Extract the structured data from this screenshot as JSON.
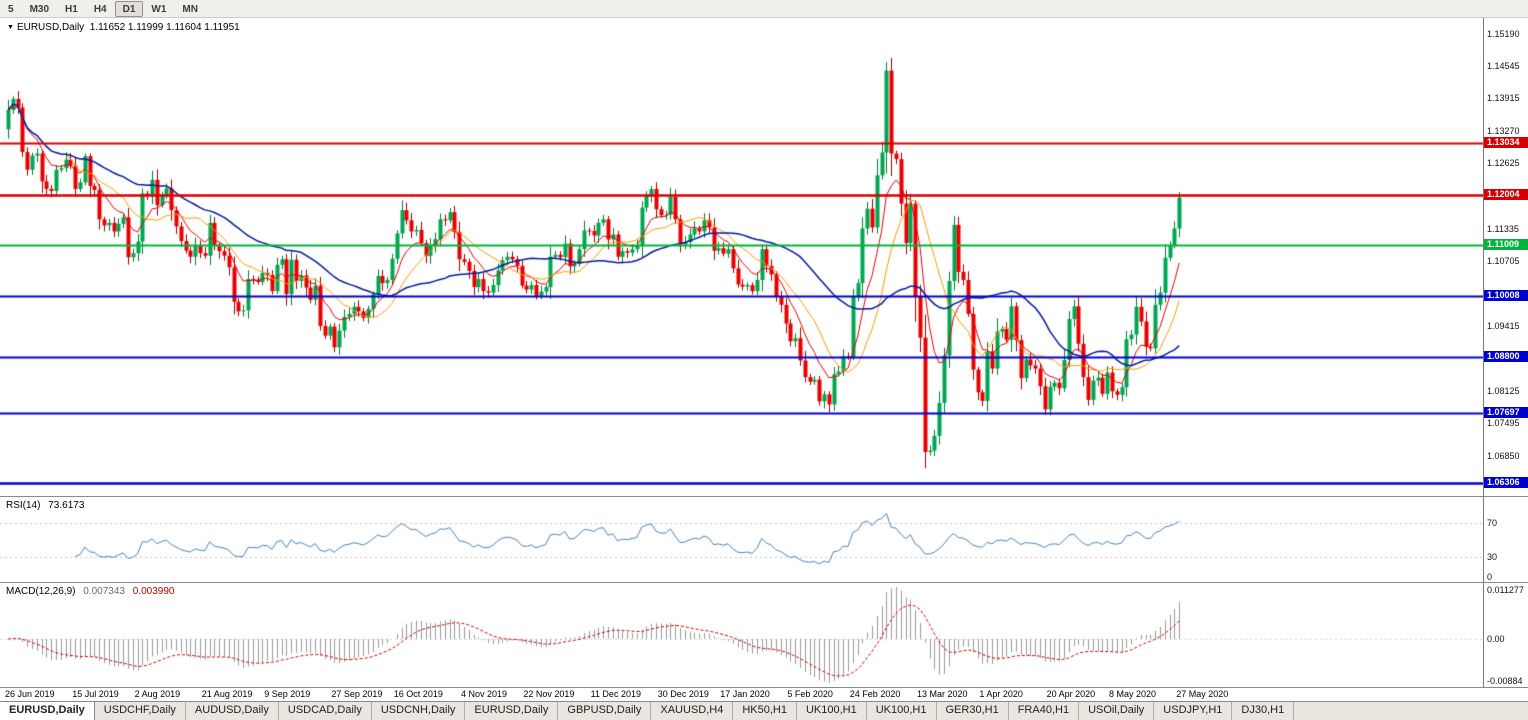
{
  "toolbar": {
    "timeframes": [
      "5",
      "M30",
      "H1",
      "H4",
      "D1",
      "W1",
      "MN"
    ],
    "active": "D1"
  },
  "chart": {
    "arrow": "▼",
    "title": "EURUSD,Daily",
    "ohlc": "1.11652 1.11999 1.11604 1.11951"
  },
  "chart_data": {
    "type": "candlestick",
    "symbol": "EURUSD",
    "timeframe": "Daily",
    "last_ohlc": {
      "open": 1.11652,
      "high": 1.11999,
      "low": 1.11604,
      "close": 1.11951
    },
    "price_range": [
      1.0605,
      1.155
    ],
    "closes": [
      1.1368,
      1.139,
      1.1373,
      1.1285,
      1.125,
      1.1278,
      1.1282,
      1.1227,
      1.1212,
      1.1208,
      1.125,
      1.1253,
      1.127,
      1.1258,
      1.1212,
      1.1225,
      1.1277,
      1.1218,
      1.121,
      1.1152,
      1.114,
      1.1145,
      1.1128,
      1.1143,
      1.1156,
      1.1077,
      1.1085,
      1.1108,
      1.1203,
      1.12,
      1.123,
      1.118,
      1.1199,
      1.1213,
      1.117,
      1.1138,
      1.1109,
      1.109,
      1.1078,
      1.11,
      1.1085,
      1.108,
      1.1145,
      1.1101,
      1.1089,
      1.108,
      1.1057,
      1.0989,
      1.097,
      1.0972,
      1.1034,
      1.1033,
      1.1028,
      1.1046,
      1.1042,
      1.101,
      1.1062,
      1.1073,
      1.1004,
      1.1072,
      1.103,
      1.1041,
      1.1017,
      1.0993,
      1.1021,
      1.0941,
      1.0922,
      1.094,
      1.0899,
      1.0932,
      1.0959,
      1.0965,
      1.0979,
      1.097,
      1.0957,
      1.0975,
      1.1004,
      1.104,
      1.1026,
      1.1032,
      1.1074,
      1.1124,
      1.117,
      1.115,
      1.1128,
      1.1131,
      1.1105,
      1.108,
      1.11,
      1.1113,
      1.1152,
      1.115,
      1.1166,
      1.1127,
      1.1073,
      1.1068,
      1.105,
      1.1018,
      1.1034,
      1.101,
      1.1007,
      1.1022,
      1.1051,
      1.1071,
      1.1078,
      1.1073,
      1.106,
      1.1021,
      1.1013,
      1.1022,
      1.1001,
      1.1009,
      1.1018,
      1.1078,
      1.1082,
      1.1077,
      1.1104,
      1.1059,
      1.1064,
      1.1093,
      1.113,
      1.1129,
      1.112,
      1.1145,
      1.1152,
      1.1112,
      1.1122,
      1.1078,
      1.1089,
      1.1086,
      1.1093,
      1.11,
      1.1175,
      1.1199,
      1.1212,
      1.1172,
      1.116,
      1.1161,
      1.1196,
      1.1152,
      1.1103,
      1.1107,
      1.1122,
      1.1134,
      1.1128,
      1.115,
      1.1136,
      1.109,
      1.1095,
      1.1084,
      1.1093,
      1.1055,
      1.1023,
      1.1019,
      1.1022,
      1.101,
      1.1032,
      1.1093,
      1.106,
      1.1043,
      1.1,
      1.0983,
      1.0946,
      1.0911,
      1.0917,
      1.0873,
      1.084,
      1.0831,
      1.0835,
      1.0792,
      1.0806,
      1.0786,
      1.0846,
      1.0851,
      1.0881,
      1.088,
      1.0998,
      1.1026,
      1.1134,
      1.1173,
      1.1136,
      1.1239,
      1.1284,
      1.1446,
      1.1282,
      1.1271,
      1.1183,
      1.1105,
      1.1183,
      1.0999,
      1.0918,
      1.0692,
      1.0695,
      1.0724,
      1.0789,
      1.0883,
      1.103,
      1.1141,
      1.1048,
      1.1032,
      1.0965,
      1.0855,
      1.081,
      1.0793,
      1.0891,
      1.0857,
      1.093,
      1.0935,
      1.0914,
      1.098,
      1.0913,
      1.0838,
      1.0875,
      1.0863,
      1.0857,
      1.0822,
      1.0776,
      1.0821,
      1.0829,
      1.0818,
      1.0874,
      1.0955,
      1.098,
      1.0906,
      1.084,
      1.0795,
      1.0833,
      1.0839,
      1.0807,
      1.0849,
      1.0812,
      1.0805,
      1.082,
      1.0915,
      1.0924,
      1.0979,
      1.095,
      1.09,
      1.0897,
      1.0983,
      1.1007,
      1.1076,
      1.1101,
      1.1134,
      1.1195
    ],
    "moving_averages": [
      {
        "name": "fast",
        "type": "ema",
        "period": 8,
        "color": "#e60000",
        "width": 1
      },
      {
        "name": "medium",
        "type": "sma",
        "period": 13,
        "color": "#ff9900",
        "width": 1
      },
      {
        "name": "slow",
        "type": "sma",
        "period": 34,
        "color": "#001a9e",
        "width": 1.5
      }
    ],
    "levels": [
      {
        "value": 1.13034,
        "label": "1.13034",
        "color": "#d40000",
        "width": 2
      },
      {
        "value": 1.12004,
        "label": "1.12004",
        "color": "#d40000",
        "width": 3
      },
      {
        "value": 1.11009,
        "label": "1.11009",
        "color": "#00b33c",
        "width": 2
      },
      {
        "value": 1.10008,
        "label": "1.10008",
        "color": "#0000cc",
        "width": 2
      },
      {
        "value": 1.088,
        "label": "1.08800",
        "color": "#0000cc",
        "width": 2
      },
      {
        "value": 1.07697,
        "label": "1.07697",
        "color": "#0000cc",
        "width": 2
      },
      {
        "value": 1.06306,
        "label": "1.06306",
        "color": "#0000cc",
        "width": 3
      }
    ],
    "y_axis_labels": [
      "1.15190",
      "1.14545",
      "1.13915",
      "1.13270",
      "1.12625",
      "1.11335",
      "1.10705",
      "1.09415",
      "1.08125",
      "1.07495",
      "1.06850"
    ],
    "date_labels": [
      "26 Jun 2019",
      "15 Jul 2019",
      "2 Aug 2019",
      "21 Aug 2019",
      "9 Sep 2019",
      "27 Sep 2019",
      "16 Oct 2019",
      "4 Nov 2019",
      "22 Nov 2019",
      "11 Dec 2019",
      "30 Dec 2019",
      "17 Jan 2020",
      "5 Feb 2020",
      "24 Feb 2020",
      "13 Mar 2020",
      "1 Apr 2020",
      "20 Apr 2020",
      "8 May 2020",
      "27 May 2020"
    ],
    "rsi": {
      "label": "RSI(14)",
      "value": "73.6173",
      "axis_labels": [
        "70",
        "30",
        "0"
      ],
      "level_lines": [
        70,
        30
      ]
    },
    "macd": {
      "label": "MACD(12,26,9)",
      "value_main": "0.007343",
      "value_signal": "0.003990",
      "axis_labels": [
        "0.011277",
        "0.00",
        "-0.00884"
      ]
    },
    "colors": {
      "up": "#00a651",
      "up_border": "#007a33",
      "down": "#e80000",
      "down_border": "#9c0000",
      "rsi_line": "#4a82b4",
      "macd_hist": "#9a9a9a",
      "macd_signal": "#cc0000",
      "background": "#ffffff",
      "axis_text": "#000000"
    }
  },
  "tabs": {
    "items": [
      "EURUSD,Daily",
      "USDCHF,Daily",
      "AUDUSD,Daily",
      "USDCAD,Daily",
      "USDCNH,Daily",
      "EURUSD,Daily",
      "GBPUSD,Daily",
      "XAUUSD,H4",
      "HK50,H1",
      "UK100,H1",
      "UK100,H1",
      "GER30,H1",
      "FRA40,H1",
      "USOil,Daily",
      "USDJPY,H1",
      "DJ30,H1"
    ],
    "active_index": 0
  }
}
